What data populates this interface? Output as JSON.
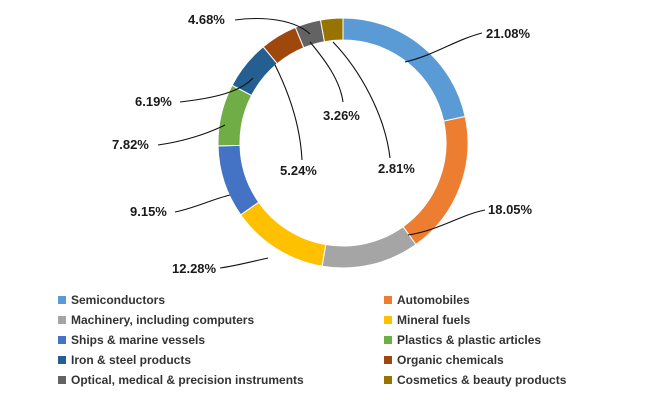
{
  "chart_data": {
    "type": "pie",
    "donut": true,
    "title": "",
    "legend_position": "bottom",
    "categories": [
      "Semiconductors",
      "Automobiles",
      "Machinery, including computers",
      "Mineral fuels",
      "Ships & marine vessels",
      "Plastics & plastic articles",
      "Iron & steel products",
      "Organic chemicals",
      "Optical, medical & precision instruments",
      "Cosmetics & beauty products"
    ],
    "values": [
      21.08,
      18.05,
      12.28,
      12.28,
      9.15,
      7.82,
      6.19,
      4.68,
      3.26,
      2.81
    ],
    "data_labels": [
      "21.08%",
      "18.05%",
      "",
      "12.28%",
      "9.15%",
      "7.82%",
      "6.19%",
      "4.68%",
      "3.26%",
      "2.81%"
    ],
    "extra_labels": [
      "5.24%"
    ],
    "colors": [
      "#5b9bd5",
      "#ed7d31",
      "#a5a5a5",
      "#ffc000",
      "#4472c4",
      "#70ad47",
      "#255e91",
      "#9e480e",
      "#636363",
      "#997300"
    ]
  }
}
